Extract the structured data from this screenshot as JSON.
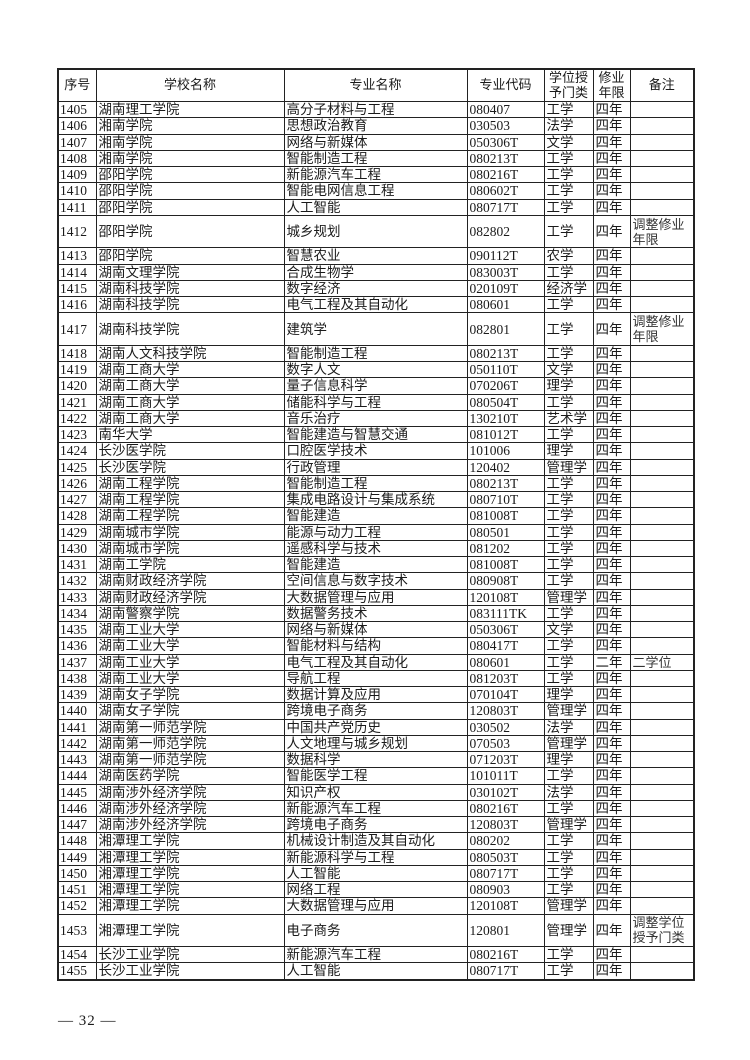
{
  "table": {
    "headers": [
      "序号",
      "学校名称",
      "专业名称",
      "专业代码",
      "学位授予门类",
      "修业年限",
      "备注"
    ],
    "rows": [
      [
        "1405",
        "湖南理工学院",
        "高分子材料与工程",
        "080407",
        "工学",
        "四年",
        ""
      ],
      [
        "1406",
        "湘南学院",
        "思想政治教育",
        "030503",
        "法学",
        "四年",
        ""
      ],
      [
        "1407",
        "湘南学院",
        "网络与新媒体",
        "050306T",
        "文学",
        "四年",
        ""
      ],
      [
        "1408",
        "湘南学院",
        "智能制造工程",
        "080213T",
        "工学",
        "四年",
        ""
      ],
      [
        "1409",
        "邵阳学院",
        "新能源汽车工程",
        "080216T",
        "工学",
        "四年",
        ""
      ],
      [
        "1410",
        "邵阳学院",
        "智能电网信息工程",
        "080602T",
        "工学",
        "四年",
        ""
      ],
      [
        "1411",
        "邵阳学院",
        "人工智能",
        "080717T",
        "工学",
        "四年",
        ""
      ],
      [
        "1412",
        "邵阳学院",
        "城乡规划",
        "082802",
        "工学",
        "四年",
        "调整修业年限"
      ],
      [
        "1413",
        "邵阳学院",
        "智慧农业",
        "090112T",
        "农学",
        "四年",
        ""
      ],
      [
        "1414",
        "湖南文理学院",
        "合成生物学",
        "083003T",
        "工学",
        "四年",
        ""
      ],
      [
        "1415",
        "湖南科技学院",
        "数字经济",
        "020109T",
        "经济学",
        "四年",
        ""
      ],
      [
        "1416",
        "湖南科技学院",
        "电气工程及其自动化",
        "080601",
        "工学",
        "四年",
        ""
      ],
      [
        "1417",
        "湖南科技学院",
        "建筑学",
        "082801",
        "工学",
        "四年",
        "调整修业年限"
      ],
      [
        "1418",
        "湖南人文科技学院",
        "智能制造工程",
        "080213T",
        "工学",
        "四年",
        ""
      ],
      [
        "1419",
        "湖南工商大学",
        "数字人文",
        "050110T",
        "文学",
        "四年",
        ""
      ],
      [
        "1420",
        "湖南工商大学",
        "量子信息科学",
        "070206T",
        "理学",
        "四年",
        ""
      ],
      [
        "1421",
        "湖南工商大学",
        "储能科学与工程",
        "080504T",
        "工学",
        "四年",
        ""
      ],
      [
        "1422",
        "湖南工商大学",
        "音乐治疗",
        "130210T",
        "艺术学",
        "四年",
        ""
      ],
      [
        "1423",
        "南华大学",
        "智能建造与智慧交通",
        "081012T",
        "工学",
        "四年",
        ""
      ],
      [
        "1424",
        "长沙医学院",
        "口腔医学技术",
        "101006",
        "理学",
        "四年",
        ""
      ],
      [
        "1425",
        "长沙医学院",
        "行政管理",
        "120402",
        "管理学",
        "四年",
        ""
      ],
      [
        "1426",
        "湖南工程学院",
        "智能制造工程",
        "080213T",
        "工学",
        "四年",
        ""
      ],
      [
        "1427",
        "湖南工程学院",
        "集成电路设计与集成系统",
        "080710T",
        "工学",
        "四年",
        ""
      ],
      [
        "1428",
        "湖南工程学院",
        "智能建造",
        "081008T",
        "工学",
        "四年",
        ""
      ],
      [
        "1429",
        "湖南城市学院",
        "能源与动力工程",
        "080501",
        "工学",
        "四年",
        ""
      ],
      [
        "1430",
        "湖南城市学院",
        "遥感科学与技术",
        "081202",
        "工学",
        "四年",
        ""
      ],
      [
        "1431",
        "湖南工学院",
        "智能建造",
        "081008T",
        "工学",
        "四年",
        ""
      ],
      [
        "1432",
        "湖南财政经济学院",
        "空间信息与数字技术",
        "080908T",
        "工学",
        "四年",
        ""
      ],
      [
        "1433",
        "湖南财政经济学院",
        "大数据管理与应用",
        "120108T",
        "管理学",
        "四年",
        ""
      ],
      [
        "1434",
        "湖南警察学院",
        "数据警务技术",
        "083111TK",
        "工学",
        "四年",
        ""
      ],
      [
        "1435",
        "湖南工业大学",
        "网络与新媒体",
        "050306T",
        "文学",
        "四年",
        ""
      ],
      [
        "1436",
        "湖南工业大学",
        "智能材料与结构",
        "080417T",
        "工学",
        "四年",
        ""
      ],
      [
        "1437",
        "湖南工业大学",
        "电气工程及其自动化",
        "080601",
        "工学",
        "二年",
        "二学位"
      ],
      [
        "1438",
        "湖南工业大学",
        "导航工程",
        "081203T",
        "工学",
        "四年",
        ""
      ],
      [
        "1439",
        "湖南女子学院",
        "数据计算及应用",
        "070104T",
        "理学",
        "四年",
        ""
      ],
      [
        "1440",
        "湖南女子学院",
        "跨境电子商务",
        "120803T",
        "管理学",
        "四年",
        ""
      ],
      [
        "1441",
        "湖南第一师范学院",
        "中国共产党历史",
        "030502",
        "法学",
        "四年",
        ""
      ],
      [
        "1442",
        "湖南第一师范学院",
        "人文地理与城乡规划",
        "070503",
        "管理学",
        "四年",
        ""
      ],
      [
        "1443",
        "湖南第一师范学院",
        "数据科学",
        "071203T",
        "理学",
        "四年",
        ""
      ],
      [
        "1444",
        "湖南医药学院",
        "智能医学工程",
        "101011T",
        "工学",
        "四年",
        ""
      ],
      [
        "1445",
        "湖南涉外经济学院",
        "知识产权",
        "030102T",
        "法学",
        "四年",
        ""
      ],
      [
        "1446",
        "湖南涉外经济学院",
        "新能源汽车工程",
        "080216T",
        "工学",
        "四年",
        ""
      ],
      [
        "1447",
        "湖南涉外经济学院",
        "跨境电子商务",
        "120803T",
        "管理学",
        "四年",
        ""
      ],
      [
        "1448",
        "湘潭理工学院",
        "机械设计制造及其自动化",
        "080202",
        "工学",
        "四年",
        ""
      ],
      [
        "1449",
        "湘潭理工学院",
        "新能源科学与工程",
        "080503T",
        "工学",
        "四年",
        ""
      ],
      [
        "1450",
        "湘潭理工学院",
        "人工智能",
        "080717T",
        "工学",
        "四年",
        ""
      ],
      [
        "1451",
        "湘潭理工学院",
        "网络工程",
        "080903",
        "工学",
        "四年",
        ""
      ],
      [
        "1452",
        "湘潭理工学院",
        "大数据管理与应用",
        "120108T",
        "管理学",
        "四年",
        ""
      ],
      [
        "1453",
        "湘潭理工学院",
        "电子商务",
        "120801",
        "管理学",
        "四年",
        "调整学位授予门类"
      ],
      [
        "1454",
        "长沙工业学院",
        "新能源汽车工程",
        "080216T",
        "工学",
        "四年",
        ""
      ],
      [
        "1455",
        "长沙工业学院",
        "人工智能",
        "080717T",
        "工学",
        "四年",
        ""
      ]
    ]
  },
  "footer": {
    "page_number": "— 32 —"
  }
}
